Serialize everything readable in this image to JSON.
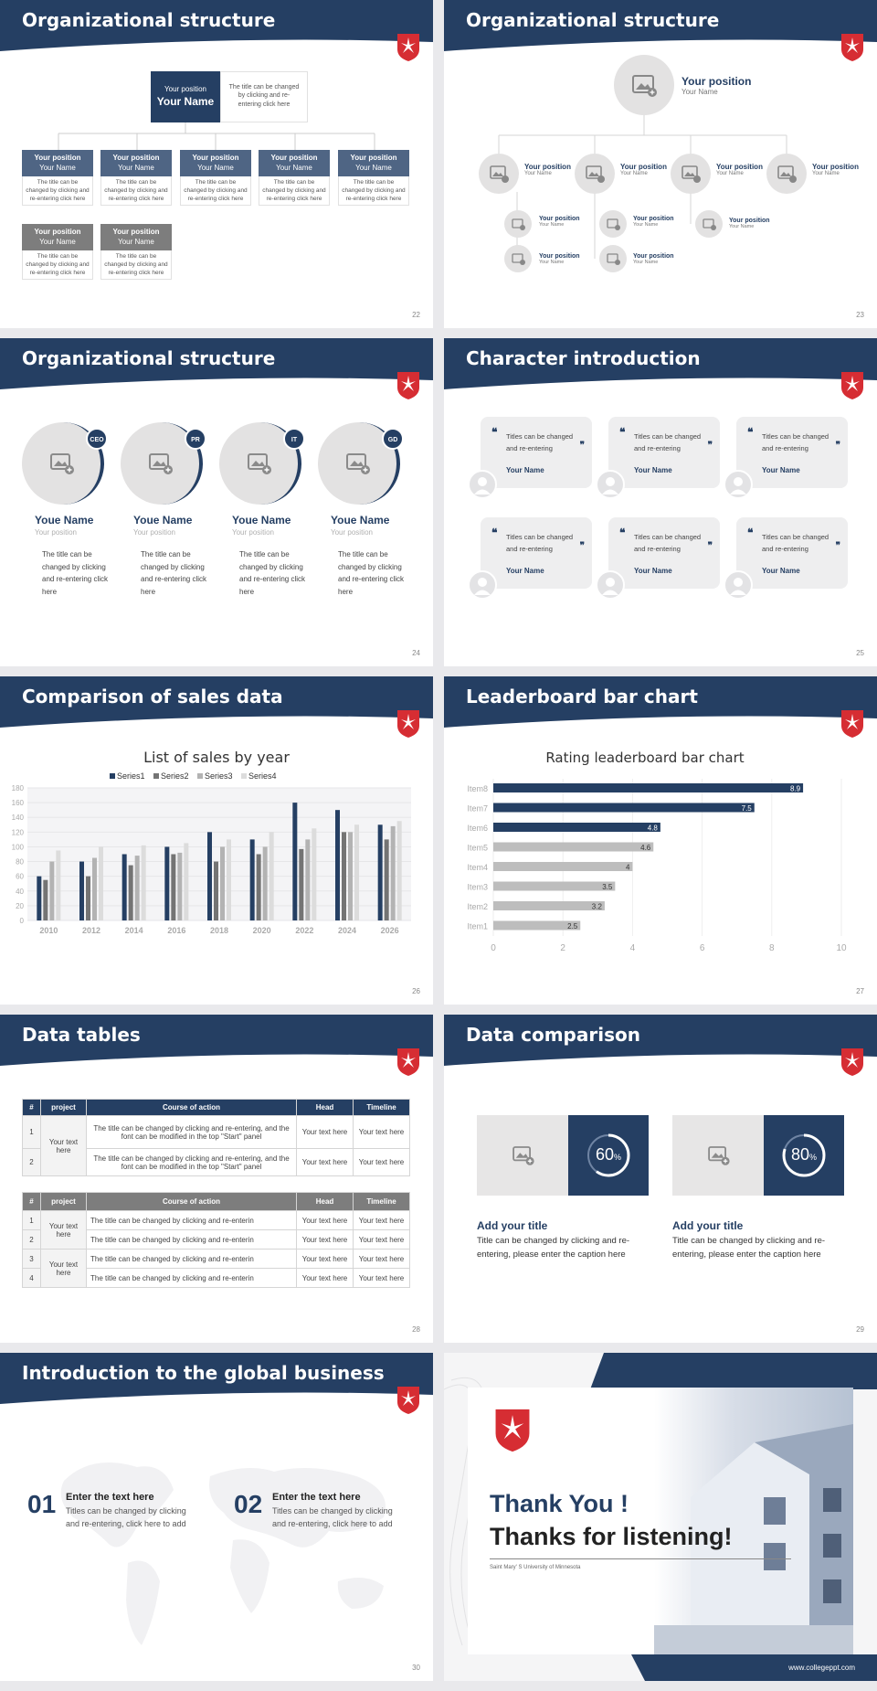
{
  "colors": {
    "navy": "#253f63",
    "gray": "#7d7d7d",
    "light": "#e7e6e6",
    "red": "#d62d33"
  },
  "slides": {
    "s22": {
      "title": "Organizational structure",
      "top": {
        "position": "Your position",
        "name": "Your Name",
        "desc": "The title can be changed by clicking and re-entering click here"
      },
      "row1": [
        {
          "position": "Your position",
          "name": "Your Name",
          "desc": "The title can be changed by clicking and re-entering click here"
        },
        {
          "position": "Your position",
          "name": "Your Name",
          "desc": "The title can be changed by clicking and re-entering click here"
        },
        {
          "position": "Your position",
          "name": "Your Name",
          "desc": "The title can be changed by clicking and re-entering click here"
        },
        {
          "position": "Your position",
          "name": "Your Name",
          "desc": "The title can be changed by clicking and re-entering click here"
        },
        {
          "position": "Your position",
          "name": "Your Name",
          "desc": "The title can be changed by clicking and re-entering click here"
        }
      ],
      "row2": [
        {
          "position": "Your position",
          "name": "Your Name",
          "desc": "The title can be changed by clicking and re-entering click here"
        },
        {
          "position": "Your position",
          "name": "Your Name",
          "desc": "The title can be changed by clicking and re-entering click here"
        }
      ],
      "page": "22"
    },
    "s23": {
      "title": "Organizational structure",
      "top": {
        "position": "Your position",
        "name": "Your Name"
      },
      "level2": [
        {
          "position": "Your position",
          "name": "Your Name"
        },
        {
          "position": "Your position",
          "name": "Your Name"
        },
        {
          "position": "Your position",
          "name": "Your Name"
        },
        {
          "position": "Your position",
          "name": "Your Name"
        }
      ],
      "level3": [
        {
          "position": "Your position",
          "name": "Your Name"
        },
        {
          "position": "Your position",
          "name": "Your Name"
        },
        {
          "position": "Your position",
          "name": "Your Name"
        },
        {
          "position": "Your position",
          "name": "Your Name"
        },
        {
          "position": "Your position",
          "name": "Your Name"
        }
      ],
      "page": "23"
    },
    "s24": {
      "title": "Organizational structure",
      "people": [
        {
          "badge": "CEO",
          "name": "Youe Name",
          "position": "Your position",
          "desc": "The title can be changed by clicking and re-entering click here"
        },
        {
          "badge": "PR",
          "name": "Youe Name",
          "position": "Your position",
          "desc": "The title can be changed by clicking and re-entering click here"
        },
        {
          "badge": "IT",
          "name": "Youe Name",
          "position": "Your position",
          "desc": "The title can be changed by clicking and re-entering click here"
        },
        {
          "badge": "GD",
          "name": "Youe Name",
          "position": "Your position",
          "desc": "The title can be changed by clicking and re-entering click here"
        }
      ],
      "page": "24"
    },
    "s25": {
      "title": "Character introduction",
      "cards": [
        {
          "text": "Titles can be changed and re-entering",
          "name": "Your Name"
        },
        {
          "text": "Titles can be changed and re-entering",
          "name": "Your Name"
        },
        {
          "text": "Titles can be changed and re-entering",
          "name": "Your Name"
        },
        {
          "text": "Titles can be changed and re-entering",
          "name": "Your Name"
        },
        {
          "text": "Titles can be changed and re-entering",
          "name": "Your Name"
        },
        {
          "text": "Titles can be changed and re-entering",
          "name": "Your Name"
        }
      ],
      "page": "25"
    },
    "s26": {
      "title": "Comparison of sales data",
      "page": "26"
    },
    "s27": {
      "title": "Leaderboard bar chart",
      "page": "27"
    },
    "s28": {
      "title": "Data tables",
      "t1": {
        "headers": [
          "#",
          "project",
          "Course of action",
          "Head",
          "Timeline"
        ],
        "rows": [
          [
            "1",
            "Your text here",
            "The title can be changed by clicking and re-entering, and the font can be modified in the top \"Start\" panel",
            "Your text here",
            "Your text here"
          ],
          [
            "2",
            "",
            "The title can be changed by clicking and re-entering, and the font can be modified in the top \"Start\" panel",
            "Your text here",
            "Your text here"
          ]
        ]
      },
      "t2": {
        "headers": [
          "#",
          "project",
          "Course of action",
          "Head",
          "Timeline"
        ],
        "rows": [
          [
            "1",
            "Your text here",
            "The title can be changed by clicking and re-enterin",
            "Your text here",
            "Your text here"
          ],
          [
            "2",
            "",
            "The title can be changed by clicking and re-enterin",
            "Your text here",
            "Your text here"
          ],
          [
            "3",
            "Your text here",
            "The title can be changed by clicking and re-enterin",
            "Your text here",
            "Your text here"
          ],
          [
            "4",
            "",
            "The title can be changed by clicking and re-enterin",
            "Your text here",
            "Your text here"
          ]
        ]
      },
      "page": "28"
    },
    "s29": {
      "title": "Data comparison",
      "items": [
        {
          "percent": "60",
          "unit": "%",
          "value": 0.6,
          "title": "Add your title",
          "desc": "Title can be changed by clicking and re-entering, please enter the caption here"
        },
        {
          "percent": "80",
          "unit": "%",
          "value": 0.8,
          "title": "Add your title",
          "desc": "Title can be changed by clicking and re-entering, please enter the caption here"
        }
      ],
      "page": "29"
    },
    "s30": {
      "title": "Introduction to the global business",
      "items": [
        {
          "num": "01",
          "heading": "Enter the text here",
          "desc": "Titles can be changed by clicking and re-entering, click here to add"
        },
        {
          "num": "02",
          "heading": "Enter the text here",
          "desc": "Titles can be changed by clicking and re-entering, click here to add"
        }
      ],
      "page": "30"
    },
    "s31": {
      "line1": "Thank You !",
      "line2": "Thanks for listening!",
      "university": "Saint Mary'  S University of Minnesota",
      "site": "www.collegeppt.com"
    }
  },
  "chart_data": [
    {
      "type": "bar",
      "title": "List of sales by year",
      "categories": [
        "2010",
        "2012",
        "2014",
        "2016",
        "2018",
        "2020",
        "2022",
        "2024",
        "2026"
      ],
      "series": [
        {
          "name": "Series1",
          "values": [
            60,
            80,
            90,
            100,
            120,
            110,
            160,
            150,
            130
          ]
        },
        {
          "name": "Series2",
          "values": [
            55,
            60,
            75,
            90,
            80,
            90,
            97,
            120,
            110
          ]
        },
        {
          "name": "Series3",
          "values": [
            80,
            85,
            88,
            92,
            100,
            100,
            110,
            120,
            128
          ]
        },
        {
          "name": "Series4",
          "values": [
            95,
            100,
            102,
            105,
            110,
            120,
            125,
            130,
            135
          ]
        }
      ],
      "yticks": [
        "0",
        "20",
        "40",
        "60",
        "80",
        "100",
        "120",
        "140",
        "160",
        "180"
      ],
      "ylim": [
        0,
        180
      ],
      "legend": "top"
    },
    {
      "type": "bar",
      "orientation": "horizontal",
      "title": "Rating leaderboard bar chart",
      "categories": [
        "Item8",
        "Item7",
        "Item6",
        "Item5",
        "Item4",
        "Item3",
        "Item2",
        "Item1"
      ],
      "values": [
        8.9,
        7.5,
        4.8,
        4.6,
        4,
        3.5,
        3.2,
        2.5
      ],
      "labels": [
        "8.9",
        "7.5",
        "4.8",
        "4.6",
        "4",
        "3.5",
        "3.2",
        "2.5"
      ],
      "xticks": [
        "0",
        "2",
        "4",
        "6",
        "8",
        "10"
      ],
      "xlim": [
        0,
        10
      ]
    }
  ]
}
